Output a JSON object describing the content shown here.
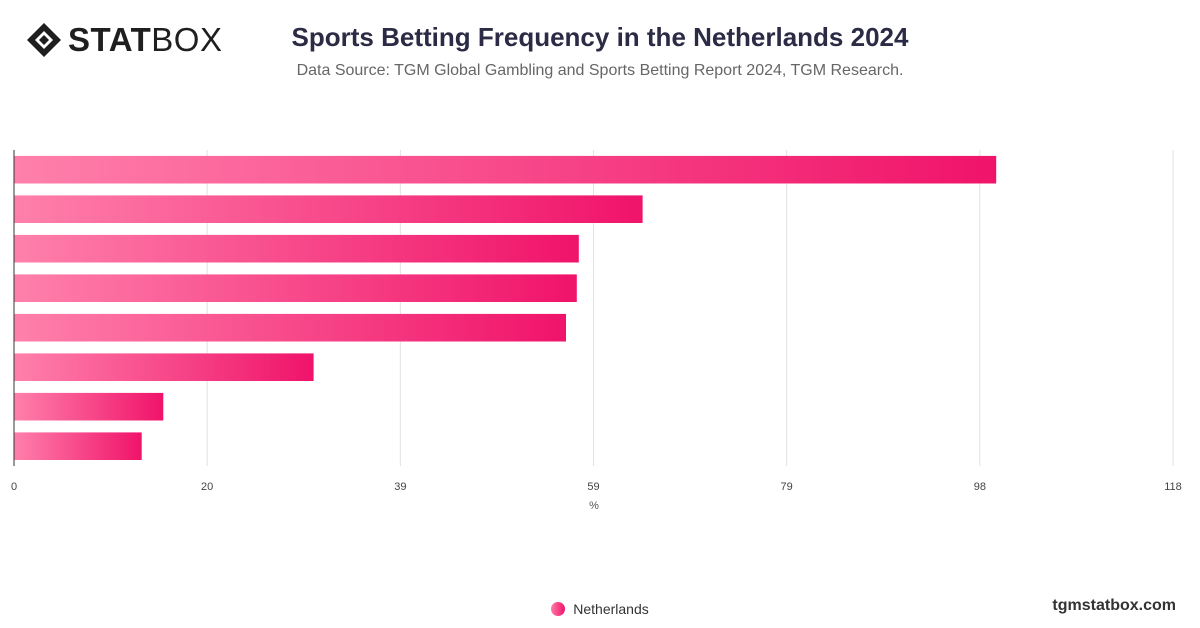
{
  "brand": {
    "stat": "STAT",
    "box": "BOX",
    "site": "tgmstatbox.com"
  },
  "colors": {
    "bar_start": "#ff80ab",
    "bar_end": "#f0136a",
    "grid": "#e2e2e2",
    "axis": "#333333"
  },
  "chart_data": {
    "type": "bar",
    "orientation": "horizontal",
    "title": "Sports Betting Frequency in the Netherlands 2024",
    "subtitle": "Data Source: TGM Global Gambling and Sports Betting Report 2024, TGM Research.",
    "xlabel": "%",
    "ylabel": "",
    "xlim": [
      0,
      118
    ],
    "x_ticks": [
      "0",
      "20",
      "39",
      "59",
      "79",
      "98",
      "118"
    ],
    "grid": true,
    "legend_position": "bottom",
    "series": [
      {
        "name": "Netherlands",
        "values": [
          100,
          64,
          57.5,
          57.3,
          56.2,
          30.5,
          15.2,
          13
        ]
      }
    ]
  }
}
